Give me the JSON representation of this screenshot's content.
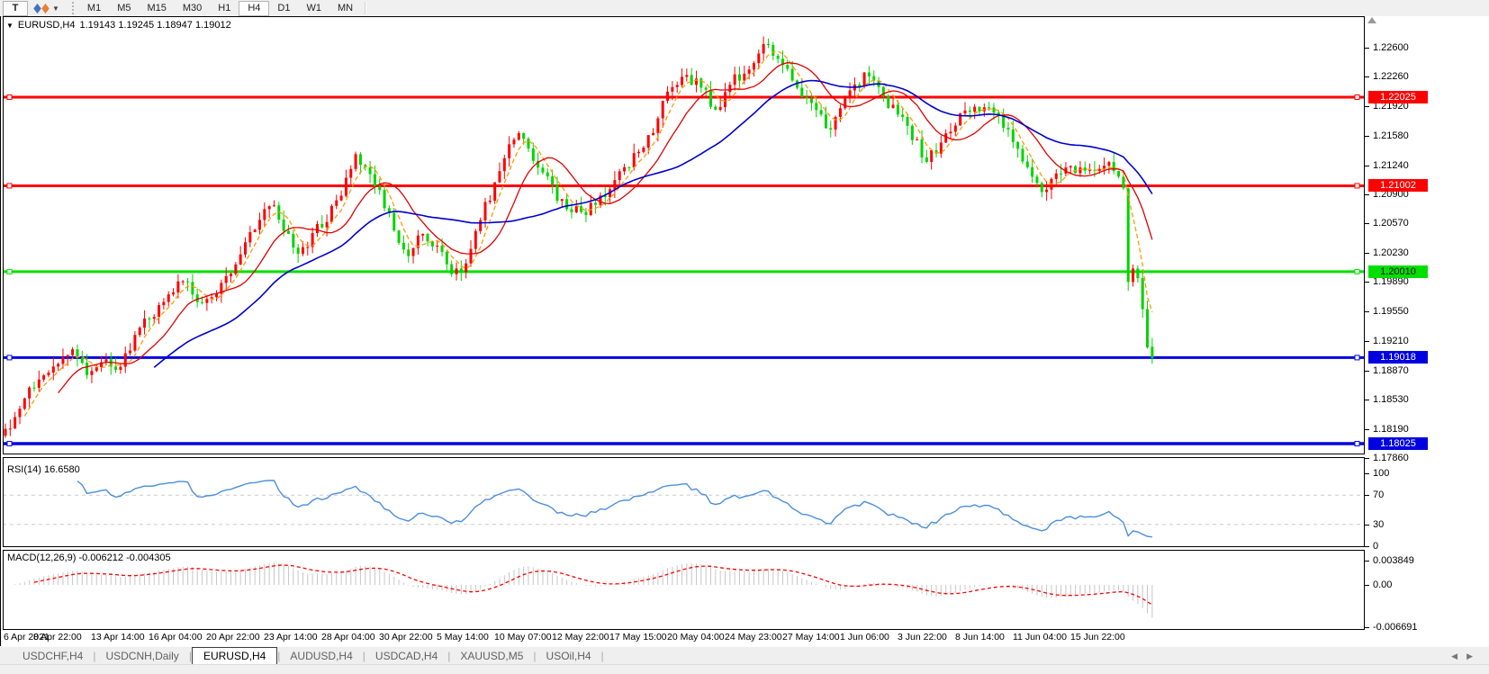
{
  "toolbar": {
    "text_tool_label": "T",
    "timeframes": [
      "M1",
      "M5",
      "M15",
      "M30",
      "H1",
      "H4",
      "D1",
      "W1",
      "MN"
    ],
    "active_timeframe": "H4"
  },
  "header": {
    "dropdown_icon": "▼",
    "symbol": "EURUSD,H4",
    "ohlc_values": "1.19143 1.19245 1.18947 1.19012"
  },
  "rsi_panel": {
    "label": "RSI(14) 16.6580"
  },
  "macd_panel": {
    "label": "MACD(12,26,9) -0.006212 -0.004305"
  },
  "tabs": {
    "items": [
      "USDCHF,H4",
      "USDCNH,Daily",
      "EURUSD,H4",
      "AUDUSD,H4",
      "USDCAD,H4",
      "XAUUSD,M5",
      "USOil,H4"
    ],
    "active": "EURUSD,H4",
    "nav_left": "◀",
    "nav_right": "▶"
  },
  "chart_data": {
    "type": "candlestick",
    "symbol": "EURUSD",
    "timeframe": "H4",
    "bars": 240,
    "ylim": [
      1.179,
      1.2296
    ],
    "y_ticks": [
      1.226,
      1.2226,
      1.2192,
      1.2158,
      1.2124,
      1.209,
      1.2057,
      1.2023,
      1.1989,
      1.1955,
      1.1921,
      1.1887,
      1.1853,
      1.1819,
      1.1786
    ],
    "x_labels": [
      "6 Apr 2021",
      "8 Apr 22:00",
      "13 Apr 14:00",
      "16 Apr 04:00",
      "20 Apr 22:00",
      "23 Apr 14:00",
      "28 Apr 04:00",
      "30 Apr 22:00",
      "5 May 14:00",
      "10 May 07:00",
      "12 May 22:00",
      "17 May 15:00",
      "20 May 04:00",
      "24 May 23:00",
      "27 May 14:00",
      "1 Jun 06:00",
      "3 Jun 22:00",
      "8 Jun 14:00",
      "11 Jun 04:00",
      "15 Jun 22:00"
    ],
    "last_ohlc": {
      "open": 1.19143,
      "high": 1.19245,
      "low": 1.18947,
      "close": 1.19012
    },
    "volatility": 0.0011,
    "bull_color": "#ff0000",
    "bear_color": "#00d400",
    "close_keypoints": [
      [
        0,
        1.1818
      ],
      [
        3,
        1.1842
      ],
      [
        6,
        1.1868
      ],
      [
        9,
        1.1884
      ],
      [
        12,
        1.19
      ],
      [
        14,
        1.191
      ],
      [
        17,
        1.188
      ],
      [
        20,
        1.1896
      ],
      [
        23,
        1.1886
      ],
      [
        26,
        1.1912
      ],
      [
        29,
        1.1948
      ],
      [
        32,
        1.196
      ],
      [
        35,
        1.1978
      ],
      [
        38,
        1.199
      ],
      [
        41,
        1.1964
      ],
      [
        44,
        1.1976
      ],
      [
        47,
        1.2
      ],
      [
        50,
        1.2035
      ],
      [
        53,
        1.2062
      ],
      [
        56,
        1.2078
      ],
      [
        58,
        1.2048
      ],
      [
        61,
        1.2022
      ],
      [
        64,
        1.2045
      ],
      [
        67,
        1.206
      ],
      [
        70,
        1.209
      ],
      [
        73,
        1.2135
      ],
      [
        75,
        1.212
      ],
      [
        78,
        1.2095
      ],
      [
        81,
        1.2048
      ],
      [
        84,
        1.202
      ],
      [
        87,
        1.2045
      ],
      [
        90,
        1.203
      ],
      [
        93,
        1.2
      ],
      [
        96,
        1.201
      ],
      [
        99,
        1.206
      ],
      [
        102,
        1.2105
      ],
      [
        105,
        1.2148
      ],
      [
        107,
        1.216
      ],
      [
        109,
        1.2142
      ],
      [
        112,
        1.2118
      ],
      [
        115,
        1.2085
      ],
      [
        118,
        1.207
      ],
      [
        121,
        1.2068
      ],
      [
        124,
        1.2088
      ],
      [
        127,
        1.2105
      ],
      [
        130,
        1.2122
      ],
      [
        133,
        1.2145
      ],
      [
        136,
        1.218
      ],
      [
        139,
        1.2215
      ],
      [
        142,
        1.2228
      ],
      [
        145,
        1.2215
      ],
      [
        148,
        1.219
      ],
      [
        151,
        1.2218
      ],
      [
        154,
        1.223
      ],
      [
        157,
        1.2255
      ],
      [
        159,
        1.2262
      ],
      [
        162,
        1.224
      ],
      [
        165,
        1.2212
      ],
      [
        168,
        1.2195
      ],
      [
        171,
        1.2165
      ],
      [
        174,
        1.2188
      ],
      [
        177,
        1.2215
      ],
      [
        180,
        1.2228
      ],
      [
        183,
        1.2205
      ],
      [
        186,
        1.218
      ],
      [
        189,
        1.2155
      ],
      [
        192,
        1.2128
      ],
      [
        195,
        1.215
      ],
      [
        198,
        1.2172
      ],
      [
        201,
        1.2185
      ],
      [
        204,
        1.219
      ],
      [
        207,
        1.218
      ],
      [
        210,
        1.215
      ],
      [
        213,
        1.212
      ],
      [
        216,
        1.2095
      ],
      [
        219,
        1.2115
      ],
      [
        222,
        1.2125
      ],
      [
        225,
        1.2118
      ],
      [
        228,
        1.2122
      ],
      [
        230,
        1.2128
      ],
      [
        231,
        1.2118
      ],
      [
        232,
        1.211
      ],
      [
        233,
        1.2098
      ],
      [
        234,
        1.199
      ],
      [
        235,
        1.2004
      ],
      [
        236,
        1.1993
      ],
      [
        237,
        1.1958
      ],
      [
        238,
        1.1914
      ],
      [
        239,
        1.19012
      ]
    ],
    "h_lines": [
      {
        "price": 1.22025,
        "color": "#ff0000",
        "width": 3,
        "badge_bg": "#ff0000",
        "badge_fg": "#ffffff"
      },
      {
        "price": 1.21002,
        "color": "#ff0000",
        "width": 3,
        "badge_bg": "#ff0000",
        "badge_fg": "#ffffff"
      },
      {
        "price": 1.2001,
        "color": "#00e000",
        "width": 3,
        "badge_bg": "#00e000",
        "badge_fg": "#000000"
      },
      {
        "price": 1.19018,
        "color": "#0000e0",
        "width": 3,
        "badge_bg": "#0000e0",
        "badge_fg": "#ffffff"
      },
      {
        "price": 1.18025,
        "color": "#0000e0",
        "width": 3.5,
        "badge_bg": "#0000e0",
        "badge_fg": "#ffffff"
      }
    ],
    "moving_averages": [
      {
        "period": 5,
        "color": "#ff9900",
        "style": "dashed"
      },
      {
        "period": 12,
        "color": "#e00000",
        "style": "solid"
      },
      {
        "period": 32,
        "color": "#0000cc",
        "style": "solid"
      }
    ],
    "rsi": {
      "period": 14,
      "last_value": 16.658,
      "range": [
        0,
        100
      ],
      "ticks": [
        100,
        70,
        30,
        0
      ],
      "overbought": 70,
      "oversold": 30,
      "line_color": "#4a8ede",
      "level_color": "#c9c9c9"
    },
    "macd": {
      "fast": 12,
      "slow": 26,
      "signal": 9,
      "last_main": -0.006212,
      "last_signal": -0.004305,
      "ticks": [
        {
          "v": 0.003849,
          "label": "0.003849"
        },
        {
          "v": 0,
          "label": "0.00"
        },
        {
          "v": -0.006691,
          "label": "-0.006691"
        }
      ],
      "histogram_color": "#c6c6c6",
      "signal_color": "#ff0000"
    }
  }
}
